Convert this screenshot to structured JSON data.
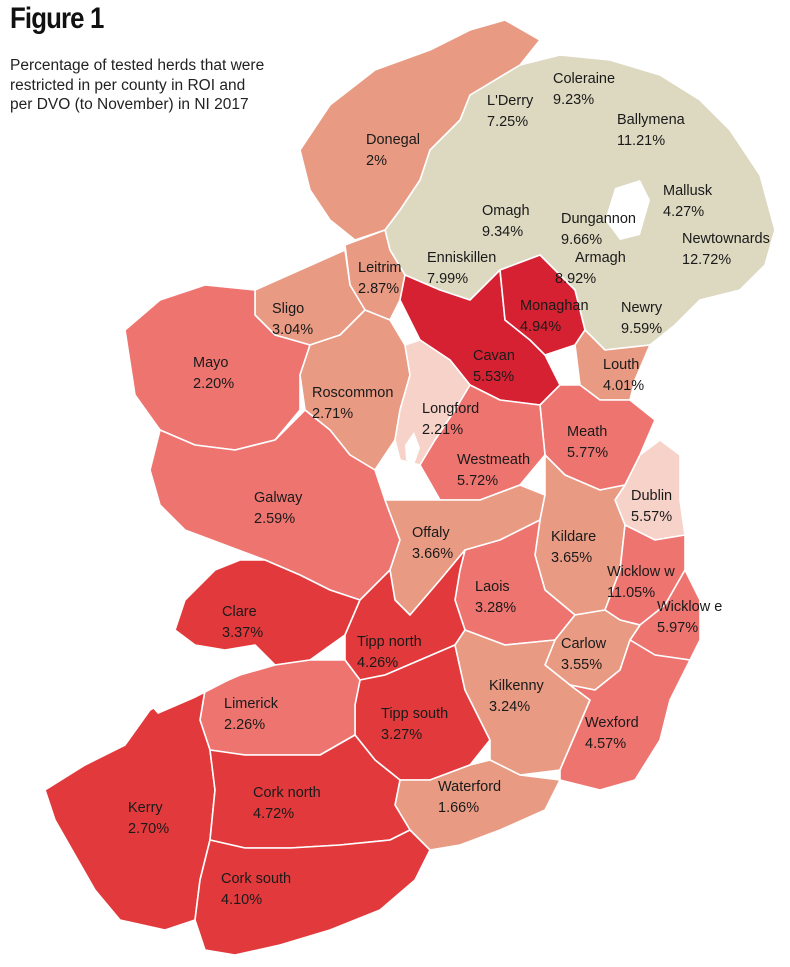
{
  "title": "Figure 1",
  "caption": "Percentage of tested herds that were restricted in per county in ROI and per DVO (to November) in NI 2017",
  "colors": {
    "ni": "#ddd8c0",
    "very_light": "#f6d2c8",
    "light": "#e89a83",
    "medium": "#ee7470",
    "dark": "#e23a3c",
    "darkest": "#d62133"
  },
  "regions": [
    {
      "name": "Coleraine",
      "value": "9.23%",
      "country": "NI",
      "shade": "ni"
    },
    {
      "name": "L'Derry",
      "value": "7.25%",
      "country": "NI",
      "shade": "ni"
    },
    {
      "name": "Ballymena",
      "value": "11.21%",
      "country": "NI",
      "shade": "ni"
    },
    {
      "name": "Donegal",
      "value": "2%",
      "country": "ROI",
      "shade": "light"
    },
    {
      "name": "Mallusk",
      "value": "4.27%",
      "country": "NI",
      "shade": "ni"
    },
    {
      "name": "Omagh",
      "value": "9.34%",
      "country": "NI",
      "shade": "ni"
    },
    {
      "name": "Dungannon",
      "value": "9.66%",
      "country": "NI",
      "shade": "ni"
    },
    {
      "name": "Newtownards",
      "value": "12.72%",
      "country": "NI",
      "shade": "ni"
    },
    {
      "name": "Enniskillen",
      "value": "7.99%",
      "country": "NI",
      "shade": "ni"
    },
    {
      "name": "Armagh",
      "value": "8.92%",
      "country": "NI",
      "shade": "ni"
    },
    {
      "name": "Leitrim",
      "value": "2.87%",
      "country": "ROI",
      "shade": "light"
    },
    {
      "name": "Monaghan",
      "value": "4.94%",
      "country": "ROI",
      "shade": "darkest"
    },
    {
      "name": "Sligo",
      "value": "3.04%",
      "country": "ROI",
      "shade": "light"
    },
    {
      "name": "Newry",
      "value": "9.59%",
      "country": "NI",
      "shade": "ni"
    },
    {
      "name": "Mayo",
      "value": "2.20%",
      "country": "ROI",
      "shade": "medium"
    },
    {
      "name": "Cavan",
      "value": "5.53%",
      "country": "ROI",
      "shade": "darkest"
    },
    {
      "name": "Louth",
      "value": "4.01%",
      "country": "ROI",
      "shade": "light"
    },
    {
      "name": "Roscommon",
      "value": "2.71%",
      "country": "ROI",
      "shade": "light"
    },
    {
      "name": "Longford",
      "value": "2.21%",
      "country": "ROI",
      "shade": "very_light"
    },
    {
      "name": "Meath",
      "value": "5.77%",
      "country": "ROI",
      "shade": "medium"
    },
    {
      "name": "Westmeath",
      "value": "5.72%",
      "country": "ROI",
      "shade": "medium"
    },
    {
      "name": "Galway",
      "value": "2.59%",
      "country": "ROI",
      "shade": "medium"
    },
    {
      "name": "Dublin",
      "value": "5.57%",
      "country": "ROI",
      "shade": "very_light"
    },
    {
      "name": "Offaly",
      "value": "3.66%",
      "country": "ROI",
      "shade": "light"
    },
    {
      "name": "Kildare",
      "value": "3.65%",
      "country": "ROI",
      "shade": "light"
    },
    {
      "name": "Wicklow w",
      "value": "11.05%",
      "country": "ROI",
      "shade": "medium"
    },
    {
      "name": "Clare",
      "value": "3.37%",
      "country": "ROI",
      "shade": "dark"
    },
    {
      "name": "Laois",
      "value": "3.28%",
      "country": "ROI",
      "shade": "medium"
    },
    {
      "name": "Wicklow e",
      "value": "5.97%",
      "country": "ROI",
      "shade": "medium"
    },
    {
      "name": "Tipp north",
      "value": "4.26%",
      "country": "ROI",
      "shade": "dark"
    },
    {
      "name": "Carlow",
      "value": "3.55%",
      "country": "ROI",
      "shade": "light"
    },
    {
      "name": "Limerick",
      "value": "2.26%",
      "country": "ROI",
      "shade": "medium"
    },
    {
      "name": "Kilkenny",
      "value": "3.24%",
      "country": "ROI",
      "shade": "light"
    },
    {
      "name": "Tipp south",
      "value": "3.27%",
      "country": "ROI",
      "shade": "dark"
    },
    {
      "name": "Wexford",
      "value": "4.57%",
      "country": "ROI",
      "shade": "medium"
    },
    {
      "name": "Cork north",
      "value": "4.72%",
      "country": "ROI",
      "shade": "dark"
    },
    {
      "name": "Waterford",
      "value": "1.66%",
      "country": "ROI",
      "shade": "light"
    },
    {
      "name": "Kerry",
      "value": "2.70%",
      "country": "ROI",
      "shade": "dark"
    },
    {
      "name": "Cork south",
      "value": "4.10%",
      "country": "ROI",
      "shade": "dark"
    }
  ]
}
